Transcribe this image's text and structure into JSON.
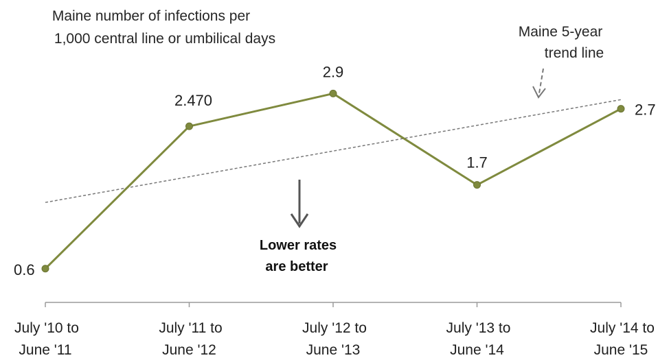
{
  "chart_data": {
    "type": "line",
    "title": "",
    "xlabel": "",
    "ylabel": "",
    "ylim": [
      0.4,
      3.3
    ],
    "grid": false,
    "legend": "none",
    "categories": [
      [
        "July '10 to",
        "June '11"
      ],
      [
        "July '11 to",
        "June '12"
      ],
      [
        "July '12 to",
        "June '13"
      ],
      [
        "July '13 to",
        "June '14"
      ],
      [
        "July '14 to",
        "June '15"
      ]
    ],
    "series": [
      {
        "values": [
          0.6,
          2.47,
          2.9,
          1.7,
          2.7
        ],
        "data_labels": [
          "0.6",
          "2.470",
          "2.9",
          "1.7",
          "2.7"
        ],
        "color": "#7f8a3e"
      }
    ],
    "series_label": [
      "Maine number of infections per",
      "1,000 central line or umbilical days"
    ],
    "trend_line": {
      "label": [
        "Maine 5-year",
        "trend line"
      ],
      "start_value": 1.47,
      "end_value": 2.82,
      "color": "#777777"
    },
    "annotation": [
      "Lower rates",
      "are better"
    ],
    "axis_color": "#9a9a9a",
    "arrow_color": "#555555"
  }
}
